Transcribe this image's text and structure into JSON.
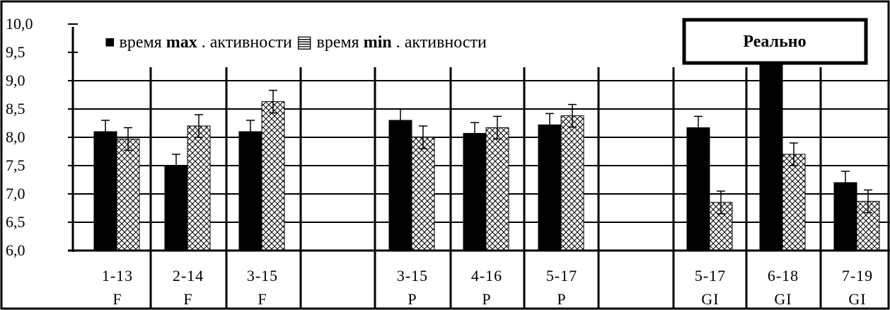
{
  "chart_data": {
    "type": "bar",
    "ylim": [
      6.0,
      10.0
    ],
    "y_ticks": [
      "10,0",
      "9,5",
      "9,0",
      "8,5",
      "8,0",
      "7,5",
      "7,0",
      "6,5",
      "6,0"
    ],
    "grid": "horizontal",
    "legend": {
      "placement": "top-left",
      "items": [
        {
          "symbol": "■",
          "prefix": "время ",
          "bold": "max",
          "suffix": ". активности"
        },
        {
          "symbol": "▤",
          "prefix": "время ",
          "bold": "min",
          "suffix": ". активности"
        }
      ]
    },
    "annotation": "Реально",
    "categories": [
      {
        "label1": "1-13",
        "label2": "F"
      },
      {
        "label1": "2-14",
        "label2": "F"
      },
      {
        "label1": "3-15",
        "label2": "F"
      },
      {
        "label1": "3-15",
        "label2": "P"
      },
      {
        "label1": "4-16",
        "label2": "P"
      },
      {
        "label1": "5-17",
        "label2": "P"
      },
      {
        "label1": "5-17",
        "label2": "GI"
      },
      {
        "label1": "6-18",
        "label2": "GI"
      },
      {
        "label1": "7-19",
        "label2": "GI"
      }
    ],
    "series": [
      {
        "name": "время max. активности",
        "color": "#000000",
        "values": [
          8.1,
          7.5,
          8.1,
          8.3,
          8.07,
          8.22,
          8.17,
          10.0,
          7.2
        ],
        "errors": [
          0.2,
          0.2,
          0.2,
          0.2,
          0.19,
          0.2,
          0.2,
          0.0,
          0.2
        ]
      },
      {
        "name": "время min. активности",
        "pattern": "crosshatch",
        "values": [
          7.97,
          8.2,
          8.63,
          8.0,
          8.17,
          8.38,
          6.85,
          7.7,
          6.87
        ],
        "errors": [
          0.2,
          0.2,
          0.2,
          0.2,
          0.2,
          0.2,
          0.2,
          0.2,
          0.2
        ]
      }
    ]
  }
}
